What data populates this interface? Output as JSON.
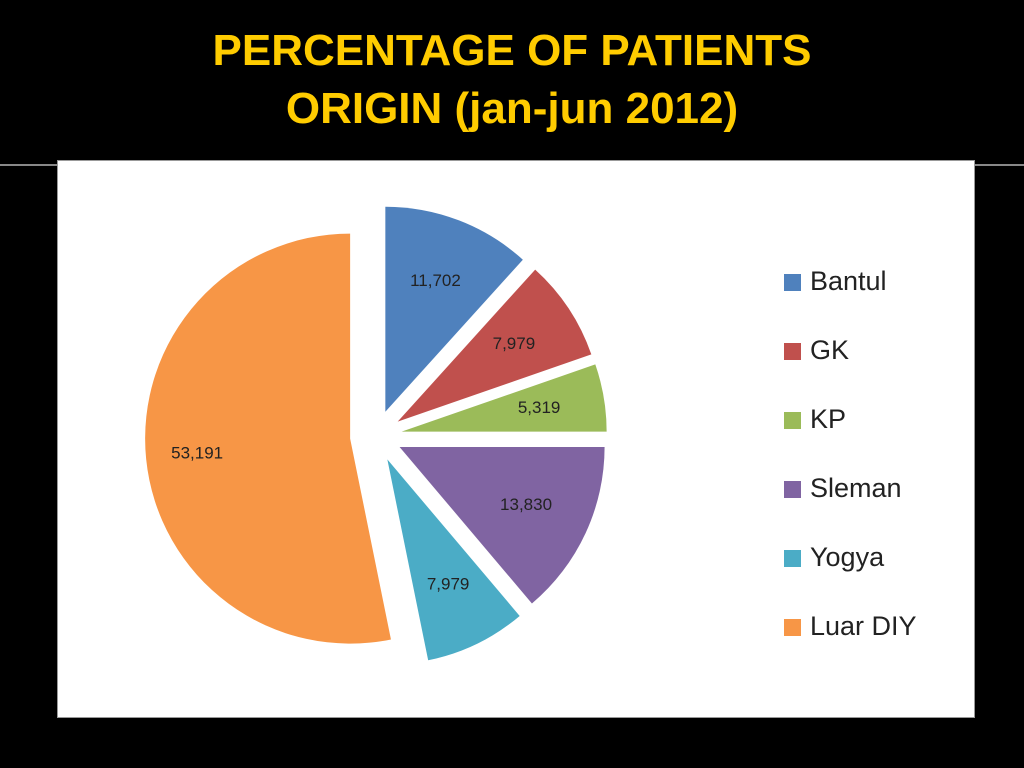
{
  "chart_data": {
    "type": "pie",
    "title": "PERCENTAGE OF PATIENTS ORIGIN (jan-jun 2012)",
    "categories": [
      "Bantul",
      "GK",
      "KP",
      "Sleman",
      "Yogya",
      "Luar DIY"
    ],
    "values": [
      11702,
      7979,
      5319,
      13830,
      7979,
      53191
    ],
    "value_labels": [
      "11,702",
      "7,979",
      "5,319",
      "13,830",
      "7,979",
      "53,191"
    ],
    "colors": [
      "#4F81BD",
      "#C0504D",
      "#9BBB59",
      "#8064A2",
      "#4BACC6",
      "#F79646"
    ],
    "legend": "right"
  }
}
